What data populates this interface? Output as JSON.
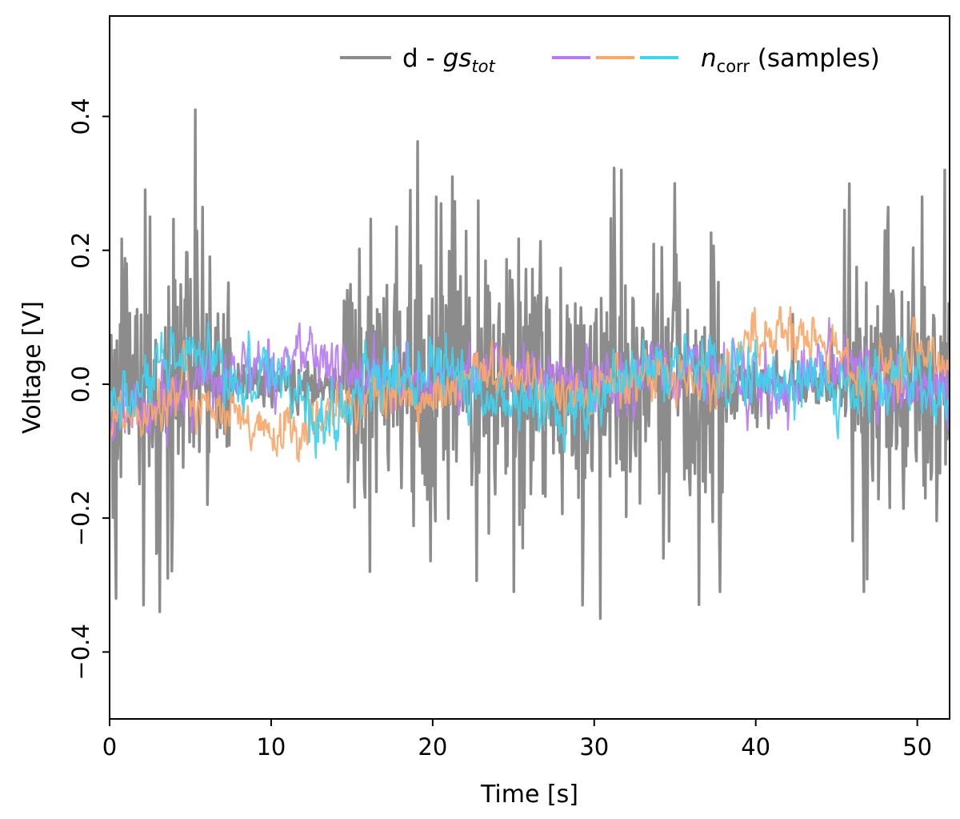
{
  "chart_data": {
    "type": "line",
    "title": "",
    "xlabel": "Time [s]",
    "ylabel": "Voltage [V]",
    "xlim": [
      0,
      52
    ],
    "ylim": [
      -0.5,
      0.55
    ],
    "xticks": [
      0,
      10,
      20,
      30,
      40,
      50
    ],
    "xtick_labels": [
      "0",
      "10",
      "20",
      "30",
      "40",
      "50"
    ],
    "yticks": [
      -0.4,
      -0.2,
      0.0,
      0.2,
      0.4
    ],
    "ytick_labels": [
      "−0.4",
      "−0.2",
      "0.0",
      "0.2",
      "0.4"
    ],
    "grid": false,
    "legend_position": "top-right",
    "legend": {
      "residual_prefix": "d - ",
      "residual_italic": "gs",
      "residual_subscript": "tot",
      "noise_italic": "n",
      "noise_subscript": "corr",
      "noise_suffix": " (samples)"
    },
    "series": [
      {
        "name": "d - gs_tot",
        "color": "#8c8c8c",
        "n_points": 1040,
        "segments": [
          {
            "t": [
              0,
              7.5
            ],
            "envelope": 0.17
          },
          {
            "t": [
              7.5,
              14.5
            ],
            "envelope": 0.03
          },
          {
            "t": [
              14.5,
              38
            ],
            "envelope": 0.18
          },
          {
            "t": [
              38,
              45.5
            ],
            "envelope": 0.04
          },
          {
            "t": [
              45.5,
              52
            ],
            "envelope": 0.17
          }
        ],
        "peaks": [
          {
            "t": 5.3,
            "v": 0.41
          },
          {
            "t": 2.5,
            "v": 0.25
          },
          {
            "t": 0.4,
            "v": -0.32
          },
          {
            "t": 2.1,
            "v": -0.33
          },
          {
            "t": 3.1,
            "v": -0.34
          },
          {
            "t": 3.6,
            "v": -0.29
          },
          {
            "t": 30.4,
            "v": -0.35
          },
          {
            "t": 29.3,
            "v": -0.33
          },
          {
            "t": 31.7,
            "v": 0.32
          },
          {
            "t": 51.7,
            "v": 0.32
          },
          {
            "t": 46.7,
            "v": -0.31
          },
          {
            "t": 50.3,
            "v": 0.28
          },
          {
            "t": 16.1,
            "v": -0.28
          },
          {
            "t": 18.6,
            "v": 0.29
          },
          {
            "t": 20.2,
            "v": 0.28
          },
          {
            "t": 21.2,
            "v": 0.31
          },
          {
            "t": 37.8,
            "v": -0.31
          },
          {
            "t": 35.0,
            "v": 0.3
          },
          {
            "t": 45.5,
            "v": 0.26
          },
          {
            "t": 34.3,
            "v": -0.26
          },
          {
            "t": 25.0,
            "v": -0.31
          }
        ]
      },
      {
        "name": "n_corr sample 1",
        "color": "#b77cf2",
        "dashed_in_legend": true,
        "n_points": 1040,
        "level_points": [
          [
            0,
            -0.06
          ],
          [
            5,
            0.0
          ],
          [
            7,
            0.01
          ],
          [
            10,
            0.03
          ],
          [
            12.3,
            0.05
          ],
          [
            14,
            0.02
          ],
          [
            18,
            0.0
          ],
          [
            24,
            0.02
          ],
          [
            30,
            0.0
          ],
          [
            34,
            0.02
          ],
          [
            38,
            0.02
          ],
          [
            42,
            -0.01
          ],
          [
            44.5,
            0.05
          ],
          [
            48,
            -0.02
          ],
          [
            52,
            0.0
          ]
        ],
        "noise_sd": 0.02
      },
      {
        "name": "n_corr sample 2",
        "color": "#f9a86c",
        "dashed_in_legend": true,
        "n_points": 1040,
        "level_points": [
          [
            0,
            -0.05
          ],
          [
            5,
            -0.01
          ],
          [
            7.5,
            -0.05
          ],
          [
            9,
            -0.08
          ],
          [
            11.5,
            -0.07
          ],
          [
            13.5,
            -0.05
          ],
          [
            16,
            -0.01
          ],
          [
            20,
            -0.03
          ],
          [
            24,
            0.03
          ],
          [
            28,
            -0.02
          ],
          [
            32,
            0.01
          ],
          [
            36,
            0.0
          ],
          [
            38,
            0.01
          ],
          [
            40,
            0.07
          ],
          [
            42,
            0.08
          ],
          [
            44.5,
            0.05
          ],
          [
            47,
            0.0
          ],
          [
            50,
            0.04
          ],
          [
            52,
            0.02
          ]
        ],
        "noise_sd": 0.018
      },
      {
        "name": "n_corr sample 3",
        "color": "#3fd3f0",
        "dashed_in_legend": true,
        "n_points": 1040,
        "level_points": [
          [
            0,
            -0.04
          ],
          [
            5,
            0.04
          ],
          [
            8,
            0.0
          ],
          [
            10,
            0.03
          ],
          [
            12,
            -0.02
          ],
          [
            13.5,
            -0.06
          ],
          [
            16,
            0.0
          ],
          [
            20,
            0.02
          ],
          [
            24,
            -0.02
          ],
          [
            29,
            -0.04
          ],
          [
            33,
            0.02
          ],
          [
            36,
            0.03
          ],
          [
            40,
            0.01
          ],
          [
            44,
            0.0
          ],
          [
            46,
            -0.02
          ],
          [
            50,
            0.01
          ],
          [
            52,
            -0.02
          ]
        ],
        "noise_sd": 0.02
      }
    ]
  }
}
